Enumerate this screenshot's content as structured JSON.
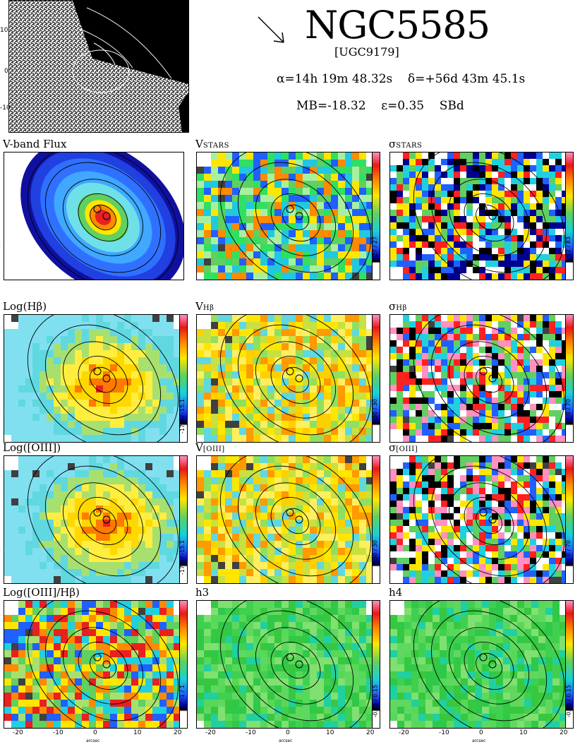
{
  "header": {
    "galaxy_name": "NGC5585",
    "catalog_id": "[UGC9179]",
    "ra": "α=14h 19m 48.32s",
    "dec": "δ=+56d 43m 45.1s",
    "abs_mag": "MB=-18.32",
    "ellipticity": "ε=0.35",
    "morph_type": "SBd"
  },
  "axes": {
    "yticks": [
      "10",
      "0",
      "-10"
    ],
    "xticks": [
      "-20",
      "-10",
      "0",
      "10",
      "20"
    ],
    "unit_label": "arcsec"
  },
  "thumbnail": {
    "yticks": [
      "10",
      "0",
      "-10"
    ]
  },
  "panels": [
    {
      "id": "vband",
      "title": "V-band Flux",
      "range": "",
      "palette": "flux"
    },
    {
      "id": "vstars",
      "title": "V",
      "sub": "STARS",
      "range": "-27 / 27",
      "palette": "vel"
    },
    {
      "id": "sigstars",
      "title": "σ",
      "sub": "STARS",
      "range": "12 / 83",
      "palette": "noisy"
    },
    {
      "id": "loghb",
      "title": "Log(Hβ)",
      "range": "-17.9 / -15.1",
      "palette": "hot"
    },
    {
      "id": "vhb",
      "title": "V",
      "sub": "Hβ",
      "range": "-30 / 30",
      "palette": "vel2"
    },
    {
      "id": "sighb",
      "title": "σ",
      "sub": "Hβ",
      "range": "0 / 70",
      "palette": "noisy2"
    },
    {
      "id": "logoiii",
      "title": "Log([OIII])",
      "range": "-17.9 / -15.1",
      "palette": "hot"
    },
    {
      "id": "voiii",
      "title": "V",
      "sub": "[OIII]",
      "range": "-30 / 30",
      "palette": "vel2"
    },
    {
      "id": "sigoiii",
      "title": "σ",
      "sub": "[OIII]",
      "range": "0 / 70",
      "palette": "noisy2"
    },
    {
      "id": "ratio",
      "title": "Log([OIII]/Hβ)",
      "range": "-1 / 1",
      "palette": "ratio"
    },
    {
      "id": "h3",
      "title": "h3",
      "range": "-0.15 / 0.15",
      "palette": "green"
    },
    {
      "id": "h4",
      "title": "h4",
      "range": "-0.15 / 0.15",
      "palette": "green"
    }
  ]
}
